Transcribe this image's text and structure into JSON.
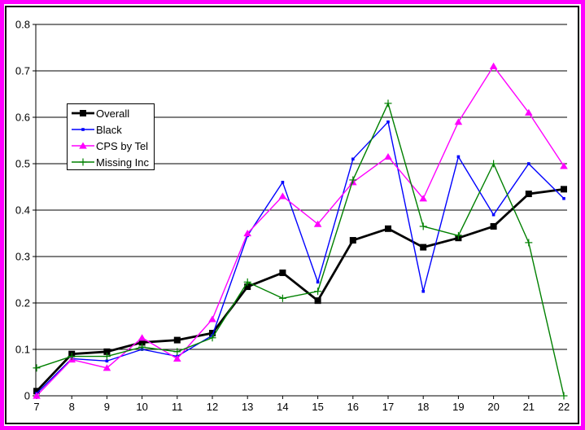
{
  "frame": {
    "outer_border_color": "#ff00ff",
    "inner_frame_color": "#000000",
    "background": "#ffffff"
  },
  "chart_data": {
    "type": "line",
    "title": "",
    "xlabel": "",
    "ylabel": "",
    "xlim": [
      7,
      22
    ],
    "ylim": [
      0,
      0.8
    ],
    "grid": "horizontal",
    "legend_position": "upper-left-inside",
    "x": [
      7,
      8,
      9,
      10,
      11,
      12,
      13,
      14,
      15,
      16,
      17,
      18,
      19,
      20,
      21,
      22
    ],
    "x_tick_labels": [
      "7",
      "8",
      "9",
      "10",
      "11",
      "12",
      "13",
      "14",
      "15",
      "16",
      "17",
      "18",
      "19",
      "20",
      "21",
      "22"
    ],
    "y_ticks": [
      0,
      0.1,
      0.2,
      0.3,
      0.4,
      0.5,
      0.6,
      0.7,
      0.8
    ],
    "y_tick_labels": [
      "0",
      "0.1",
      "0.2",
      "0.3",
      "0.4",
      "0.5",
      "0.6",
      "0.7",
      "0.8"
    ],
    "series": [
      {
        "name": "Overall",
        "color": "#000000",
        "marker": "square",
        "line_width": 2.8,
        "values": [
          0.01,
          0.09,
          0.095,
          0.115,
          0.12,
          0.135,
          0.235,
          0.265,
          0.205,
          0.335,
          0.36,
          0.32,
          0.34,
          0.365,
          0.435,
          0.445
        ]
      },
      {
        "name": "Black",
        "color": "#0000ff",
        "marker": "small-square",
        "line_width": 1.4,
        "values": [
          0.005,
          0.08,
          0.075,
          0.1,
          0.085,
          0.13,
          0.345,
          0.46,
          0.245,
          0.51,
          0.59,
          0.225,
          0.515,
          0.39,
          0.5,
          0.425
        ]
      },
      {
        "name": "CPS by Tel",
        "color": "#ff00ff",
        "marker": "triangle",
        "line_width": 1.4,
        "values": [
          0.0,
          0.078,
          0.06,
          0.125,
          0.08,
          0.165,
          0.35,
          0.43,
          0.37,
          0.46,
          0.515,
          0.425,
          0.59,
          0.71,
          0.61,
          0.495
        ]
      },
      {
        "name": "Missing Inc",
        "color": "#008000",
        "marker": "plus",
        "line_width": 1.4,
        "values": [
          0.06,
          0.085,
          0.085,
          0.105,
          0.095,
          0.125,
          0.245,
          0.21,
          0.225,
          0.465,
          0.63,
          0.365,
          0.345,
          0.5,
          0.33,
          0.0
        ]
      }
    ]
  }
}
